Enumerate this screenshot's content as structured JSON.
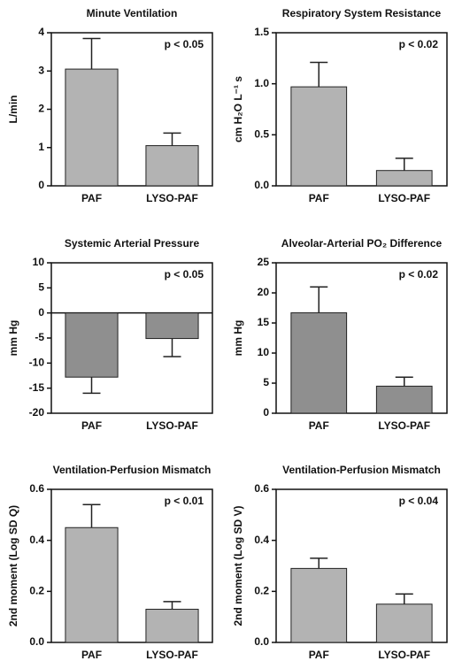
{
  "chart_data": [
    {
      "type": "bar",
      "title": "Minute Ventilation",
      "ylabel": "L/min",
      "annotation": "p < 0.05",
      "categories": [
        "PAF",
        "LYSO-PAF"
      ],
      "values": [
        3.05,
        1.05
      ],
      "errors": [
        0.8,
        0.33
      ],
      "color": "#b3b3b3",
      "ylim": [
        0,
        4
      ],
      "yticks": [
        0,
        1,
        2,
        3,
        4
      ]
    },
    {
      "type": "bar",
      "title": "Respiratory System Resistance",
      "ylabel": "cm H₂O L⁻¹ s",
      "annotation": "p < 0.02",
      "categories": [
        "PAF",
        "LYSO-PAF"
      ],
      "values": [
        0.97,
        0.15
      ],
      "errors": [
        0.24,
        0.12
      ],
      "color": "#b3b3b3",
      "ylim": [
        0,
        1.5
      ],
      "yticks": [
        {
          "value": 0,
          "label": "0.0"
        },
        {
          "value": 0.5,
          "label": "0.5"
        },
        {
          "value": 1,
          "label": "1.0"
        },
        {
          "value": 1.5,
          "label": "1.5"
        }
      ]
    },
    {
      "type": "bar",
      "title": "Systemic Arterial Pressure",
      "ylabel": "mm Hg",
      "annotation": "p < 0.05",
      "categories": [
        "PAF",
        "LYSO-PAF"
      ],
      "values": [
        -12.8,
        -5.1
      ],
      "errors": [
        3.2,
        3.6
      ],
      "color": "#8f8f8f",
      "ylim": [
        -20,
        10
      ],
      "yticks": [
        -20,
        -15,
        -10,
        -5,
        0,
        5,
        10
      ]
    },
    {
      "type": "bar",
      "title": "Alveolar-Arterial PO₂ Difference",
      "ylabel": "mm Hg",
      "annotation": "p < 0.02",
      "categories": [
        "PAF",
        "LYSO-PAF"
      ],
      "values": [
        16.7,
        4.5
      ],
      "errors": [
        4.3,
        1.5
      ],
      "color": "#8f8f8f",
      "ylim": [
        0,
        25
      ],
      "yticks": [
        0,
        5,
        10,
        15,
        20,
        25
      ]
    },
    {
      "type": "bar",
      "title": "Ventilation-Perfusion Mismatch",
      "ylabel": "2nd moment (Log SD Q)",
      "annotation": "p < 0.01",
      "categories": [
        "PAF",
        "LYSO-PAF"
      ],
      "values": [
        0.45,
        0.13
      ],
      "errors": [
        0.09,
        0.03
      ],
      "color": "#b3b3b3",
      "ylim": [
        0,
        0.6
      ],
      "yticks": [
        {
          "value": 0,
          "label": "0.0"
        },
        {
          "value": 0.2,
          "label": "0.2"
        },
        {
          "value": 0.4,
          "label": "0.4"
        },
        {
          "value": 0.6,
          "label": "0.6"
        }
      ]
    },
    {
      "type": "bar",
      "title": "Ventilation-Perfusion Mismatch",
      "ylabel": "2nd moment (Log SD V)",
      "annotation": "p < 0.04",
      "categories": [
        "PAF",
        "LYSO-PAF"
      ],
      "values": [
        0.29,
        0.15
      ],
      "errors": [
        0.04,
        0.04
      ],
      "color": "#b3b3b3",
      "ylim": [
        0,
        0.6
      ],
      "yticks": [
        {
          "value": 0,
          "label": "0.0"
        },
        {
          "value": 0.2,
          "label": "0.2"
        },
        {
          "value": 0.4,
          "label": "0.4"
        },
        {
          "value": 0.6,
          "label": "0.6"
        }
      ]
    }
  ]
}
